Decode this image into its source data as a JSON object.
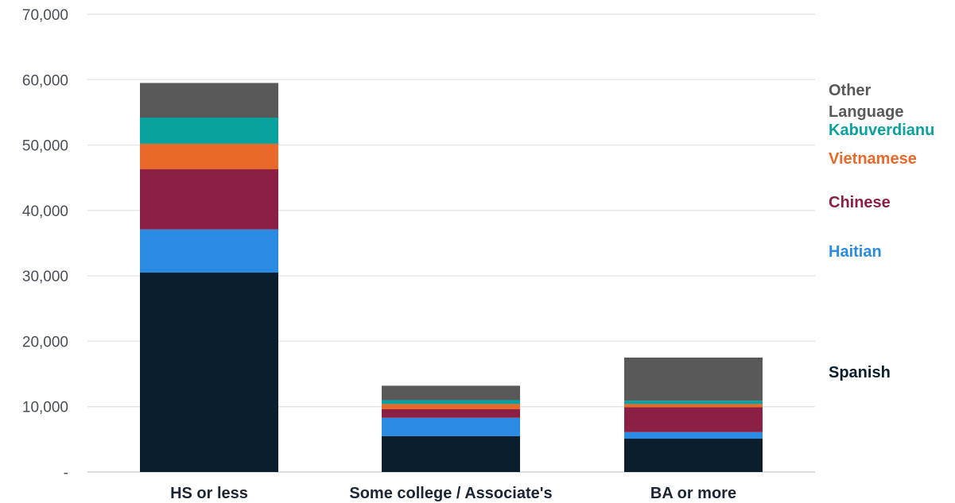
{
  "chart_data": {
    "type": "bar",
    "stacked": true,
    "title": "",
    "xlabel": "",
    "ylabel": "",
    "categories": [
      "HS or less",
      "Some college / Associate's",
      "BA or more"
    ],
    "ylim": [
      0,
      70000
    ],
    "yticks": [
      0,
      10000,
      20000,
      30000,
      40000,
      50000,
      60000,
      70000
    ],
    "ytick_labels": [
      "-",
      "10,000",
      "20,000",
      "30,000",
      "40,000",
      "50,000",
      "60,000",
      "70,000"
    ],
    "grid": true,
    "legend": "right",
    "series": [
      {
        "name": "Spanish",
        "color": "#0b1e2d",
        "values": [
          30500,
          5500,
          5100
        ]
      },
      {
        "name": "Haitian",
        "color": "#2b8be2",
        "values": [
          6600,
          2800,
          1000
        ]
      },
      {
        "name": "Chinese",
        "color": "#8c1f46",
        "values": [
          9200,
          1300,
          3800
        ]
      },
      {
        "name": "Vietnamese",
        "color": "#e8692a",
        "values": [
          3900,
          800,
          500
        ]
      },
      {
        "name": "Kabuverdianu",
        "color": "#0aa29e",
        "values": [
          4000,
          600,
          500
        ]
      },
      {
        "name": "Other Language",
        "color": "#595959",
        "values": [
          5300,
          2200,
          6600
        ]
      }
    ],
    "gridline_color": "#e6e6e6",
    "axis_color": "#cfd2d6"
  }
}
